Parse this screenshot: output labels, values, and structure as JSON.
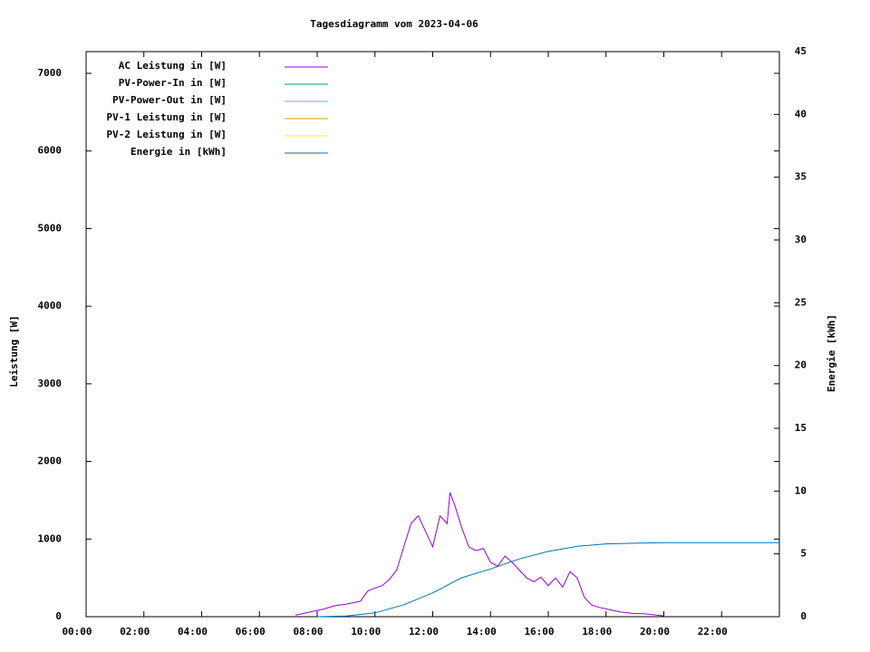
{
  "chart_data": {
    "type": "line",
    "title": "Tagesdiagramm vom 2023-04-06",
    "y_label": "Leistung [W]",
    "y2_label": "Energie [kWh]",
    "xlim": [
      0,
      24
    ],
    "xticks": [
      {
        "value": 0,
        "label": "00:00"
      },
      {
        "value": 2,
        "label": "02:00"
      },
      {
        "value": 4,
        "label": "04:00"
      },
      {
        "value": 6,
        "label": "06:00"
      },
      {
        "value": 8,
        "label": "08:00"
      },
      {
        "value": 10,
        "label": "10:00"
      },
      {
        "value": 12,
        "label": "12:00"
      },
      {
        "value": 14,
        "label": "14:00"
      },
      {
        "value": 16,
        "label": "16:00"
      },
      {
        "value": 18,
        "label": "18:00"
      },
      {
        "value": 20,
        "label": "20:00"
      },
      {
        "value": 22,
        "label": "22:00"
      }
    ],
    "ylim": [
      0,
      7280
    ],
    "yticks": [
      0,
      1000,
      2000,
      3000,
      4000,
      5000,
      6000,
      7000
    ],
    "y2lim": [
      0,
      45
    ],
    "y2ticks": [
      0,
      5,
      10,
      15,
      20,
      25,
      30,
      35,
      40,
      45
    ],
    "series": [
      {
        "name": "AC Leistung in [W]",
        "color": "#9400d3",
        "x": [
          7.25,
          7.5,
          7.75,
          8.0,
          8.25,
          8.5,
          8.75,
          9.0,
          9.25,
          9.5,
          9.75,
          10.0,
          10.25,
          10.5,
          10.75,
          11.0,
          11.25,
          11.5,
          11.75,
          12.0,
          12.25,
          12.5,
          12.6,
          12.75,
          13.0,
          13.25,
          13.5,
          13.75,
          14.0,
          14.25,
          14.5,
          14.75,
          15.0,
          15.25,
          15.5,
          15.75,
          16.0,
          16.25,
          16.5,
          16.75,
          17.0,
          17.25,
          17.5,
          17.75,
          18.0,
          18.25,
          18.5,
          18.75,
          19.0,
          19.25,
          19.5,
          19.75,
          20.0
        ],
        "values": [
          20,
          40,
          60,
          80,
          100,
          130,
          150,
          160,
          180,
          200,
          330,
          370,
          400,
          480,
          600,
          900,
          1200,
          1300,
          1100,
          900,
          1300,
          1200,
          1600,
          1450,
          1150,
          900,
          850,
          880,
          700,
          650,
          780,
          700,
          600,
          500,
          450,
          510,
          400,
          500,
          380,
          580,
          500,
          250,
          150,
          120,
          100,
          80,
          60,
          50,
          40,
          40,
          30,
          20,
          10
        ]
      },
      {
        "name": "PV-Power-In in [W]",
        "color": "#009e73",
        "x": [],
        "values": []
      },
      {
        "name": "PV-Power-Out in [W]",
        "color": "#56b4e9",
        "x": [],
        "values": []
      },
      {
        "name": "PV-1 Leistung in [W]",
        "color": "#e69f00",
        "x": [],
        "values": []
      },
      {
        "name": "PV-2 Leistung in [W]",
        "color": "#f0e442",
        "x": [],
        "values": []
      },
      {
        "name": "Energie in [kWh]",
        "color": "#0072b2",
        "axis": "y2",
        "x": [
          8,
          9,
          10,
          11,
          12,
          13,
          14,
          15,
          16,
          17,
          18,
          19,
          20,
          24
        ],
        "values": [
          0,
          0.05,
          0.3,
          0.95,
          1.9,
          3.1,
          3.8,
          4.6,
          5.2,
          5.6,
          5.8,
          5.85,
          5.9,
          5.9
        ]
      }
    ]
  }
}
